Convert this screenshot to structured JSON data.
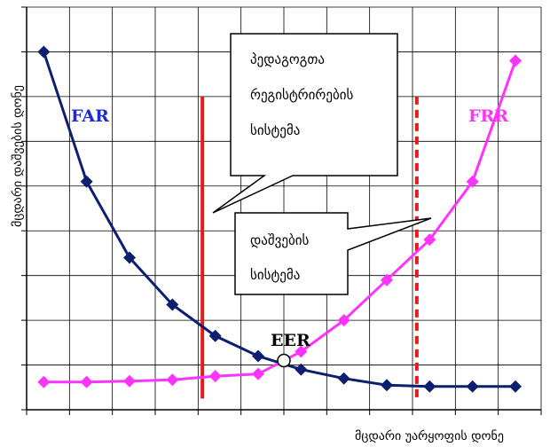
{
  "chart_data": {
    "type": "line",
    "xlabel": "მცდარი უარყოფის დონე",
    "ylabel": "მცდარი დაშვების დონე",
    "grid": true,
    "xlim": [
      0,
      12
    ],
    "ylim": [
      0,
      9
    ],
    "series": [
      {
        "name": "FAR",
        "color": "#0d1f6e",
        "label_color": "#1a2bd6",
        "x": [
          0.4,
          1.4,
          2.4,
          3.4,
          4.4,
          5.4,
          6.4,
          7.4,
          8.4,
          9.4,
          10.4,
          11.4
        ],
        "y": [
          8.0,
          5.1,
          3.4,
          2.35,
          1.65,
          1.2,
          0.9,
          0.7,
          0.55,
          0.52,
          0.52,
          0.52
        ]
      },
      {
        "name": "FRR",
        "color": "#ff33ff",
        "label_color": "#ff33ff",
        "x": [
          0.4,
          1.4,
          2.4,
          3.4,
          4.4,
          5.4,
          6.4,
          7.4,
          8.4,
          9.4,
          10.4,
          11.4
        ],
        "y": [
          0.62,
          0.62,
          0.64,
          0.67,
          0.75,
          0.8,
          1.3,
          2.0,
          2.9,
          3.8,
          5.1,
          7.8
        ]
      }
    ],
    "thresholds": [
      {
        "x": 4.1,
        "color": "#e21b1b",
        "style": "solid"
      },
      {
        "x": 9.1,
        "color": "#e21b1b",
        "style": "dashed"
      }
    ],
    "eer": {
      "label": "EER",
      "x": 6.0,
      "y": 1.1
    },
    "callouts": [
      {
        "lines": [
          "პედაგოგთა",
          "რეგისტრირების",
          "სისტემა"
        ]
      },
      {
        "lines": [
          "დაშვების",
          "სისტემა"
        ]
      }
    ]
  }
}
